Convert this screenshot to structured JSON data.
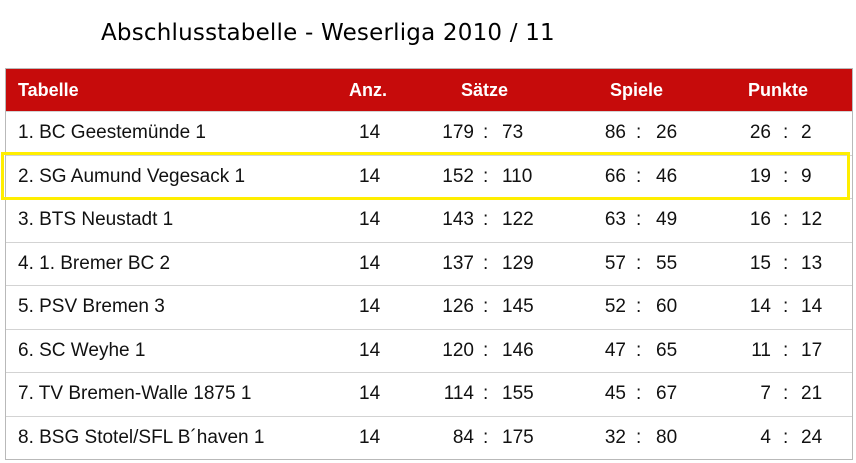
{
  "title": "Abschlusstabelle - Weserliga 2010 / 11",
  "colors": {
    "header_bg": "#c60b0b",
    "highlight": "#ffee00"
  },
  "header": {
    "tabelle": "Tabelle",
    "anz": "Anz.",
    "saetze": "Sätze",
    "spiele": "Spiele",
    "punkte": "Punkte"
  },
  "separator": ":",
  "rows": [
    {
      "name": "1. BC Geestemünde 1",
      "anz": "14",
      "saetze_w": "179",
      "saetze_l": "73",
      "spiele_w": "86",
      "spiele_l": "26",
      "punkte_w": "26",
      "punkte_l": "2"
    },
    {
      "name": "2. SG Aumund Vegesack 1",
      "anz": "14",
      "saetze_w": "152",
      "saetze_l": "110",
      "spiele_w": "66",
      "spiele_l": "46",
      "punkte_w": "19",
      "punkte_l": "9"
    },
    {
      "name": "3. BTS Neustadt 1",
      "anz": "14",
      "saetze_w": "143",
      "saetze_l": "122",
      "spiele_w": "63",
      "spiele_l": "49",
      "punkte_w": "16",
      "punkte_l": "12"
    },
    {
      "name": "4. 1. Bremer BC 2",
      "anz": "14",
      "saetze_w": "137",
      "saetze_l": "129",
      "spiele_w": "57",
      "spiele_l": "55",
      "punkte_w": "15",
      "punkte_l": "13"
    },
    {
      "name": "5. PSV Bremen 3",
      "anz": "14",
      "saetze_w": "126",
      "saetze_l": "145",
      "spiele_w": "52",
      "spiele_l": "60",
      "punkte_w": "14",
      "punkte_l": "14"
    },
    {
      "name": "6. SC Weyhe 1",
      "anz": "14",
      "saetze_w": "120",
      "saetze_l": "146",
      "spiele_w": "47",
      "spiele_l": "65",
      "punkte_w": "11",
      "punkte_l": "17"
    },
    {
      "name": "7. TV Bremen-Walle 1875 1",
      "anz": "14",
      "saetze_w": "114",
      "saetze_l": "155",
      "spiele_w": "45",
      "spiele_l": "67",
      "punkte_w": "7",
      "punkte_l": "21"
    },
    {
      "name": "8. BSG Stotel/SFL B´haven 1",
      "anz": "14",
      "saetze_w": "84",
      "saetze_l": "175",
      "spiele_w": "32",
      "spiele_l": "80",
      "punkte_w": "4",
      "punkte_l": "24"
    }
  ]
}
